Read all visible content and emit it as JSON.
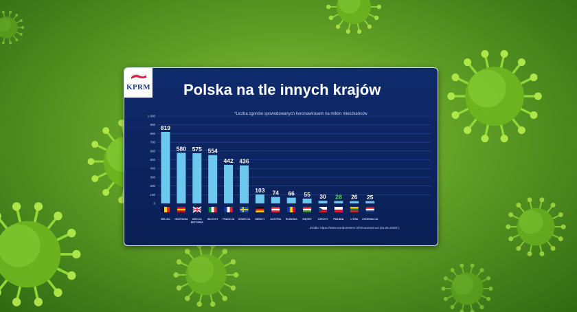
{
  "logo": {
    "text": "KPRM"
  },
  "chart_data": {
    "type": "bar",
    "title": "Polska na tle innych krajów",
    "subtitle": "*Liczba zgonów spowodowanych koronawirusem   na milion mieszkańców",
    "source": "Źródło:  https://www.worldometers.info/coronavirus/ (01.06.2020r.)",
    "categories": [
      "BELGIA",
      "HISZPANIA",
      "WIELKA BRYTANIA",
      "WŁOCHY",
      "FRANCJA",
      "SZWECJA",
      "NIEMCY",
      "AUSTRIA",
      "RUMUNIA",
      "WĘGRY",
      "CZECHY",
      "POLSKA",
      "LITWA",
      "CHORWACJA"
    ],
    "values": [
      819,
      580,
      575,
      554,
      442,
      436,
      103,
      74,
      66,
      55,
      30,
      28,
      26,
      25
    ],
    "highlight_category": "POLSKA",
    "ylim": [
      0,
      1000
    ],
    "yticks": [
      "0",
      "100",
      "200",
      "300",
      "400",
      "500",
      "600",
      "700",
      "800",
      "900",
      "1 000"
    ],
    "grid": true,
    "colors": {
      "bar": "#6cc8ef",
      "highlight_label": "#5fe05a",
      "label": "#ffffff",
      "background": "#0d2461"
    }
  }
}
